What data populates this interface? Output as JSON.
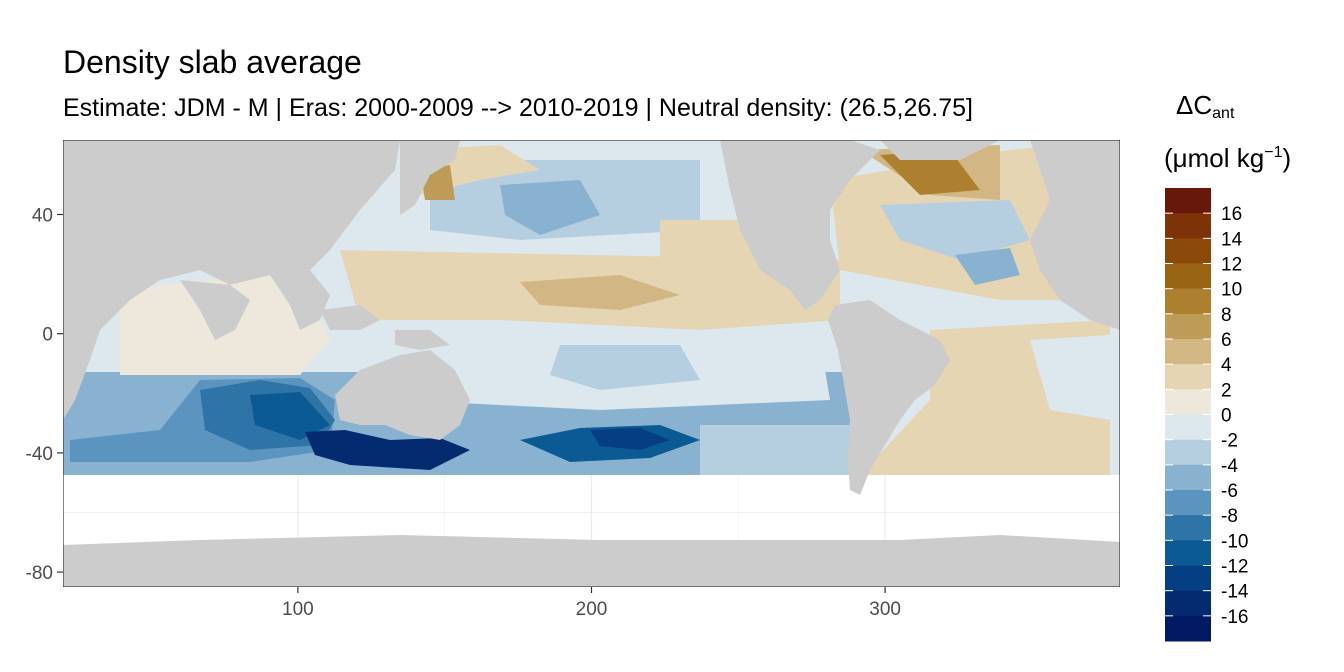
{
  "title": "Density slab average",
  "subtitle": "Estimate: JDM - M | Eras: 2000-2009 --> 2010-2019 | Neutral density: (26.5,26.75]",
  "legend": {
    "symbol": "ΔC",
    "subscript": "ant",
    "unit_open": "(μmol kg",
    "unit_exp": "−1",
    "unit_close": ")"
  },
  "chart_data": {
    "type": "heatmap",
    "title": "Density slab average",
    "subtitle": "Estimate: JDM - M | Eras: 2000-2009 --> 2010-2019 | Neutral density: (26.5,26.75]",
    "xlabel": "",
    "ylabel": "",
    "xlim": [
      20,
      380
    ],
    "ylim": [
      -85,
      65
    ],
    "x_ticks": [
      100,
      200,
      300
    ],
    "y_ticks": [
      -80,
      -40,
      0,
      40
    ],
    "grid": true,
    "legend_position": "right",
    "land_color": "#cccccc",
    "no_data_color": "#ffffff",
    "color_scale": {
      "labels": [
        "16",
        "14",
        "12",
        "10",
        "8",
        "6",
        "4",
        "2",
        "0",
        "-2",
        "-4",
        "-6",
        "-8",
        "-10",
        "-12",
        "-14",
        "-16"
      ],
      "colors": [
        "#67180b",
        "#7d3208",
        "#8c4a0a",
        "#9a6415",
        "#ad8030",
        "#bf9b58",
        "#d2b784",
        "#e6d5b3",
        "#ede7dc",
        "#dde8ee",
        "#b5cfe1",
        "#89b2d1",
        "#5b94be",
        "#2f74a7",
        "#0b5a94",
        "#063e83",
        "#042a70",
        "#021a63"
      ]
    }
  }
}
